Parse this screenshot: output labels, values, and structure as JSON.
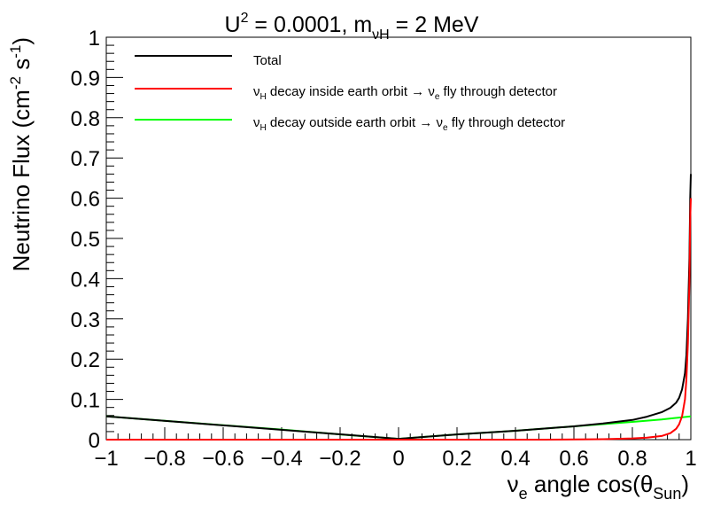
{
  "chart_data": {
    "type": "line",
    "title": {
      "main": "U",
      "sup": "2",
      "mid": " = 0.0001, m",
      "sub": "νH",
      "tail": " = 2 MeV"
    },
    "xlabel": {
      "pre": "ν",
      "sub1": "e",
      "mid": " angle cos(θ",
      "sub2": "Sun",
      "post": ")"
    },
    "ylabel": {
      "pre": "Neutrino Flux (cm",
      "sup1": "-2",
      "mid": " s",
      "sup2": "-1",
      "post": ")"
    },
    "xlim": [
      -1,
      1
    ],
    "ylim": [
      0,
      1
    ],
    "x_ticks": [
      {
        "v": -1,
        "label": "−1"
      },
      {
        "v": -0.8,
        "label": "−0.8"
      },
      {
        "v": -0.6,
        "label": "−0.6"
      },
      {
        "v": -0.4,
        "label": "−0.4"
      },
      {
        "v": -0.2,
        "label": "−0.2"
      },
      {
        "v": 0,
        "label": "0"
      },
      {
        "v": 0.2,
        "label": "0.2"
      },
      {
        "v": 0.4,
        "label": "0.4"
      },
      {
        "v": 0.6,
        "label": "0.6"
      },
      {
        "v": 0.8,
        "label": "0.8"
      },
      {
        "v": 1,
        "label": "1"
      }
    ],
    "y_ticks": [
      {
        "v": 0,
        "label": "0"
      },
      {
        "v": 0.1,
        "label": "0.1"
      },
      {
        "v": 0.2,
        "label": "0.2"
      },
      {
        "v": 0.3,
        "label": "0.3"
      },
      {
        "v": 0.4,
        "label": "0.4"
      },
      {
        "v": 0.5,
        "label": "0.5"
      },
      {
        "v": 0.6,
        "label": "0.6"
      },
      {
        "v": 0.7,
        "label": "0.7"
      },
      {
        "v": 0.8,
        "label": "0.8"
      },
      {
        "v": 0.9,
        "label": "0.9"
      },
      {
        "v": 1,
        "label": "1"
      }
    ],
    "grid": false,
    "legend_position": "top",
    "series": [
      {
        "name": "Total",
        "color": "#000000",
        "x": [
          -1.0,
          -0.5,
          0.0,
          0.2,
          0.4,
          0.6,
          0.7,
          0.8,
          0.85,
          0.9,
          0.93,
          0.95,
          0.96,
          0.97,
          0.98,
          0.985,
          0.99,
          0.995,
          0.998,
          1.0
        ],
        "y": [
          0.058,
          0.03,
          0.002,
          0.013,
          0.022,
          0.033,
          0.04,
          0.049,
          0.057,
          0.068,
          0.079,
          0.092,
          0.104,
          0.125,
          0.165,
          0.21,
          0.3,
          0.45,
          0.6,
          0.66
        ]
      },
      {
        "name": {
          "pre": "ν",
          "sub1": "H",
          "mid": " decay inside earth orbit → ν",
          "sub2": "e",
          "post": " fly through detector"
        },
        "color": "#ff0000",
        "x": [
          -1.0,
          0.5,
          0.7,
          0.8,
          0.85,
          0.9,
          0.93,
          0.95,
          0.96,
          0.97,
          0.98,
          0.985,
          0.99,
          0.995,
          0.998,
          1.0
        ],
        "y": [
          0.0,
          0.0,
          0.001,
          0.003,
          0.005,
          0.009,
          0.016,
          0.027,
          0.038,
          0.058,
          0.1,
          0.15,
          0.24,
          0.39,
          0.55,
          0.6
        ]
      },
      {
        "name": {
          "pre": "ν",
          "sub1": "H",
          "mid": " decay outside earth orbit → ν",
          "sub2": "e",
          "post": " fly through detector"
        },
        "color": "#00ff00",
        "x": [
          -1.0,
          -0.8,
          -0.6,
          -0.4,
          -0.2,
          0.0,
          0.2,
          0.4,
          0.6,
          0.8,
          0.9,
          1.0
        ],
        "y": [
          0.058,
          0.047,
          0.036,
          0.025,
          0.013,
          0.002,
          0.013,
          0.022,
          0.033,
          0.044,
          0.05,
          0.058
        ]
      }
    ]
  }
}
